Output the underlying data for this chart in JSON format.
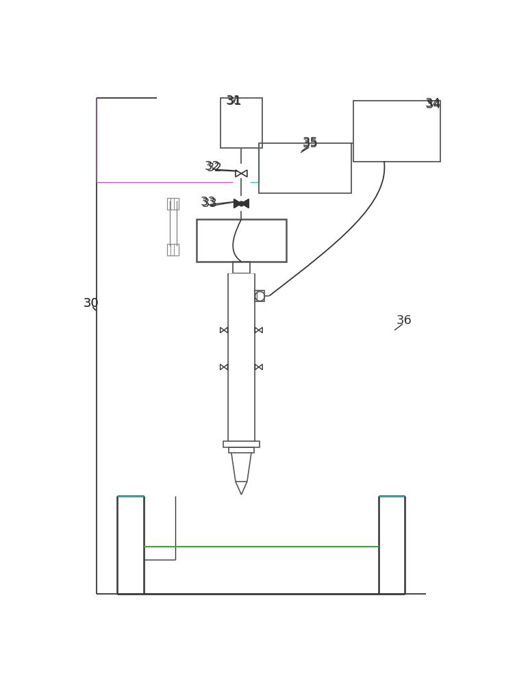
{
  "bg_color": "#ffffff",
  "dark": "#333333",
  "mid": "#555555",
  "light": "#888888",
  "magenta": "#cc55cc",
  "green": "#33aa33",
  "cyan": "#44bbbb",
  "label_fs": 13
}
